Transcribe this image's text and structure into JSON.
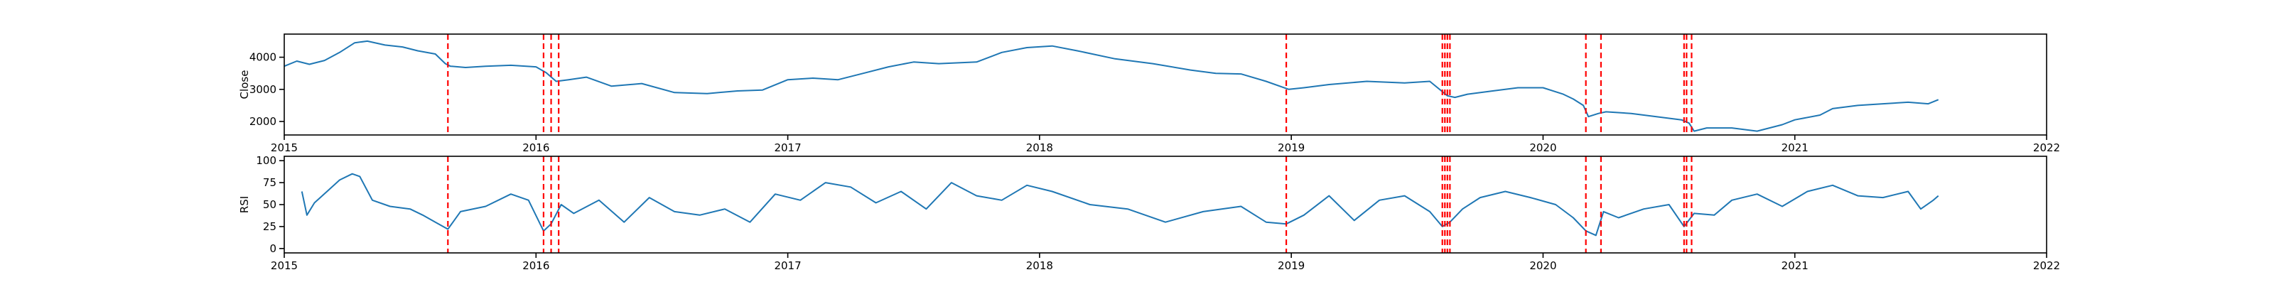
{
  "chart_data": [
    {
      "type": "line",
      "title": "",
      "xlabel": "",
      "ylabel": "Close",
      "xlim": [
        2015.0,
        2022.0
      ],
      "ylim": [
        1580,
        4720
      ],
      "x_ticks": [
        "2015",
        "2016",
        "2017",
        "2018",
        "2019",
        "2020",
        "2021",
        "2022"
      ],
      "y_ticks": [
        {
          "value": 2000,
          "label": "2000"
        },
        {
          "value": 3000,
          "label": "3000"
        },
        {
          "value": 4000,
          "label": "4000"
        }
      ],
      "series": [
        {
          "name": "Close",
          "color": "#1f77b4",
          "x": [
            2015.0,
            2015.05,
            2015.1,
            2015.16,
            2015.22,
            2015.28,
            2015.33,
            2015.4,
            2015.47,
            2015.53,
            2015.6,
            2015.64,
            2015.66,
            2015.72,
            2015.8,
            2015.9,
            2016.0,
            2016.04,
            2016.08,
            2016.13,
            2016.2,
            2016.3,
            2016.42,
            2016.55,
            2016.68,
            2016.8,
            2016.9,
            2017.0,
            2017.1,
            2017.2,
            2017.3,
            2017.4,
            2017.5,
            2017.6,
            2017.75,
            2017.85,
            2017.95,
            2018.05,
            2018.15,
            2018.3,
            2018.45,
            2018.6,
            2018.7,
            2018.8,
            2018.9,
            2018.99,
            2019.05,
            2019.15,
            2019.3,
            2019.45,
            2019.55,
            2019.62,
            2019.65,
            2019.7,
            2019.8,
            2019.9,
            2020.0,
            2020.08,
            2020.12,
            2020.16,
            2020.18,
            2020.22,
            2020.25,
            2020.35,
            2020.45,
            2020.55,
            2020.58,
            2020.6,
            2020.65,
            2020.75,
            2020.85,
            2020.95,
            2021.0,
            2021.1,
            2021.15,
            2021.25,
            2021.35,
            2021.45,
            2021.53,
            2021.57
          ],
          "y": [
            3720,
            3880,
            3780,
            3900,
            4150,
            4450,
            4500,
            4380,
            4320,
            4200,
            4100,
            3800,
            3720,
            3680,
            3720,
            3750,
            3700,
            3520,
            3250,
            3300,
            3380,
            3100,
            3180,
            2900,
            2870,
            2950,
            2980,
            3300,
            3350,
            3300,
            3500,
            3700,
            3850,
            3800,
            3850,
            4150,
            4300,
            4350,
            4200,
            3950,
            3800,
            3600,
            3500,
            3480,
            3250,
            3000,
            3050,
            3150,
            3250,
            3200,
            3250,
            2800,
            2750,
            2850,
            2950,
            3050,
            3050,
            2850,
            2700,
            2500,
            2150,
            2250,
            2300,
            2250,
            2150,
            2050,
            1950,
            1700,
            1800,
            1800,
            1700,
            1900,
            2050,
            2200,
            2400,
            2500,
            2550,
            2600,
            2550,
            2680
          ]
        }
      ],
      "vlines": [
        2015.65,
        2016.03,
        2016.06,
        2016.09,
        2018.98,
        2019.6,
        2019.61,
        2019.62,
        2019.63,
        2020.17,
        2020.23,
        2020.56,
        2020.57,
        2020.59
      ],
      "vline_color": "#ff0000",
      "grid": false
    },
    {
      "type": "line",
      "title": "",
      "xlabel": "",
      "ylabel": "RSI",
      "xlim": [
        2015.0,
        2022.0
      ],
      "ylim": [
        -5,
        105
      ],
      "x_ticks": [
        "2015",
        "2016",
        "2017",
        "2018",
        "2019",
        "2020",
        "2021",
        "2022"
      ],
      "y_ticks": [
        {
          "value": 0,
          "label": "0"
        },
        {
          "value": 25,
          "label": "25"
        },
        {
          "value": 50,
          "label": "50"
        },
        {
          "value": 75,
          "label": "75"
        },
        {
          "value": 100,
          "label": "100"
        }
      ],
      "series": [
        {
          "name": "RSI",
          "color": "#1f77b4",
          "x": [
            2015.07,
            2015.09,
            2015.12,
            2015.17,
            2015.22,
            2015.27,
            2015.3,
            2015.35,
            2015.42,
            2015.5,
            2015.55,
            2015.6,
            2015.65,
            2015.7,
            2015.8,
            2015.9,
            2015.97,
            2016.03,
            2016.06,
            2016.1,
            2016.15,
            2016.25,
            2016.35,
            2016.45,
            2016.55,
            2016.65,
            2016.75,
            2016.85,
            2016.95,
            2017.05,
            2017.15,
            2017.25,
            2017.35,
            2017.45,
            2017.55,
            2017.65,
            2017.75,
            2017.85,
            2017.95,
            2018.05,
            2018.2,
            2018.35,
            2018.5,
            2018.65,
            2018.8,
            2018.9,
            2018.98,
            2019.05,
            2019.15,
            2019.25,
            2019.35,
            2019.45,
            2019.55,
            2019.6,
            2019.63,
            2019.68,
            2019.75,
            2019.85,
            2019.95,
            2020.05,
            2020.12,
            2020.17,
            2020.21,
            2020.24,
            2020.3,
            2020.4,
            2020.5,
            2020.56,
            2020.6,
            2020.68,
            2020.75,
            2020.85,
            2020.95,
            2021.05,
            2021.15,
            2021.25,
            2021.35,
            2021.45,
            2021.5,
            2021.55,
            2021.57
          ],
          "y": [
            65,
            38,
            52,
            65,
            78,
            85,
            82,
            55,
            48,
            45,
            38,
            30,
            22,
            42,
            48,
            62,
            55,
            20,
            28,
            50,
            40,
            55,
            30,
            58,
            42,
            38,
            45,
            30,
            62,
            55,
            75,
            70,
            52,
            65,
            45,
            75,
            60,
            55,
            72,
            65,
            50,
            45,
            30,
            42,
            48,
            30,
            28,
            38,
            60,
            32,
            55,
            60,
            42,
            25,
            30,
            45,
            58,
            65,
            58,
            50,
            35,
            20,
            15,
            42,
            35,
            45,
            50,
            25,
            40,
            38,
            55,
            62,
            48,
            65,
            72,
            60,
            58,
            65,
            45,
            55,
            60
          ]
        }
      ],
      "vlines": [
        2015.65,
        2016.03,
        2016.06,
        2016.09,
        2018.98,
        2019.6,
        2019.61,
        2019.62,
        2019.63,
        2020.17,
        2020.23,
        2020.56,
        2020.57,
        2020.59
      ],
      "vline_color": "#ff0000",
      "grid": false
    }
  ]
}
